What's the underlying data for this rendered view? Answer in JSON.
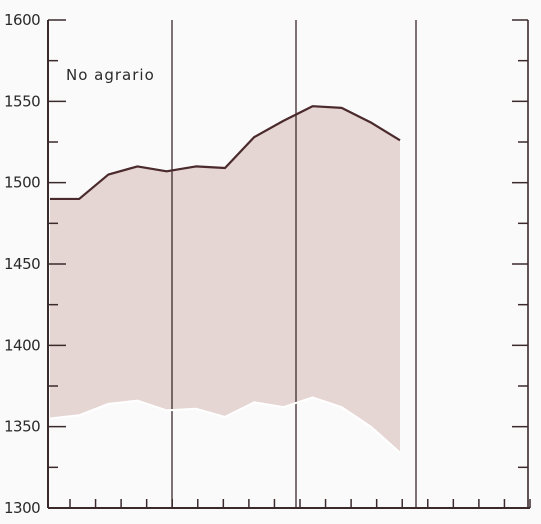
{
  "chart_data": {
    "type": "area",
    "title": "",
    "xlabel": "",
    "ylabel": "",
    "ylim": [
      1300,
      1600
    ],
    "yticks": [
      1300,
      1350,
      1400,
      1450,
      1500,
      1550,
      1600
    ],
    "y_tick_labels": [
      "1300",
      "1350",
      "1400",
      "1450",
      "1500",
      "1550",
      "1600"
    ],
    "x_tick_count": 19,
    "annotation": "No agrario",
    "series": [
      {
        "name": "",
        "values": [
          1490,
          1490,
          1505,
          1510,
          1507,
          1510,
          1509,
          1528,
          1538,
          1547,
          1546,
          1537,
          1526
        ]
      },
      {
        "name": "",
        "values": [
          1355,
          1357,
          1364,
          1366,
          1360,
          1361,
          1356,
          1365,
          1362,
          1368,
          1362,
          1350,
          1334
        ]
      }
    ],
    "colors": {
      "fill": "#e5d6d3",
      "upper_line": "#4a2a2c",
      "lower_line": "#ffffff",
      "axis": "#3a2a2c"
    }
  }
}
